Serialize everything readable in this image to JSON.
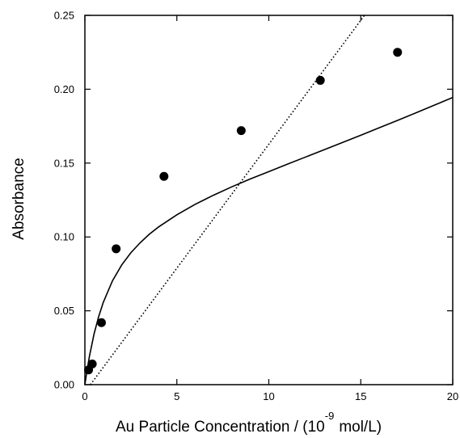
{
  "chart_data": {
    "type": "scatter",
    "title": "",
    "ylabel": "Absorbance",
    "xlabel": {
      "prefix": "Au Particle Concentration / (10",
      "superscript": "-9",
      "suffix": "mol/L)"
    },
    "xlim": [
      0,
      20
    ],
    "ylim": [
      0,
      0.25
    ],
    "x_ticks": [
      0,
      5,
      10,
      15,
      20
    ],
    "x_tick_labels": [
      "0",
      "5",
      "10",
      "15",
      "20"
    ],
    "y_ticks": [
      0,
      0.05,
      0.1,
      0.15,
      0.2,
      0.25
    ],
    "y_tick_labels": [
      "0.00",
      "0.05",
      "0.10",
      "0.15",
      "0.20",
      "0.25"
    ],
    "grid": false,
    "series": [
      {
        "kind": "points",
        "marker": "filled-circle",
        "x": [
          0.2,
          0.4,
          0.9,
          1.7,
          4.3,
          8.5,
          12.8,
          17.0
        ],
        "y": [
          0.01,
          0.014,
          0.042,
          0.092,
          0.141,
          0.172,
          0.206,
          0.225
        ]
      },
      {
        "kind": "curve",
        "style": "solid",
        "x": [
          0,
          0.1,
          0.25,
          0.5,
          0.75,
          1,
          1.5,
          2,
          2.5,
          3,
          3.5,
          4,
          5,
          6,
          7,
          8,
          9,
          10,
          11,
          12,
          13,
          14,
          15,
          16,
          17,
          18,
          19,
          20
        ],
        "y": [
          0.0,
          0.0084,
          0.0194,
          0.0344,
          0.0461,
          0.0557,
          0.0703,
          0.081,
          0.0893,
          0.096,
          0.1018,
          0.1067,
          0.115,
          0.1221,
          0.1283,
          0.134,
          0.1393,
          0.1442,
          0.1492,
          0.1541,
          0.159,
          0.1639,
          0.1688,
          0.1739,
          0.1789,
          0.184,
          0.1892,
          0.1944
        ]
      },
      {
        "kind": "line",
        "style": "dotted",
        "x": [
          0.3,
          15.2
        ],
        "y": [
          0.0,
          0.25
        ]
      }
    ],
    "colors": {
      "axis": "#000000",
      "marker": "#000000",
      "line": "#000000"
    }
  }
}
